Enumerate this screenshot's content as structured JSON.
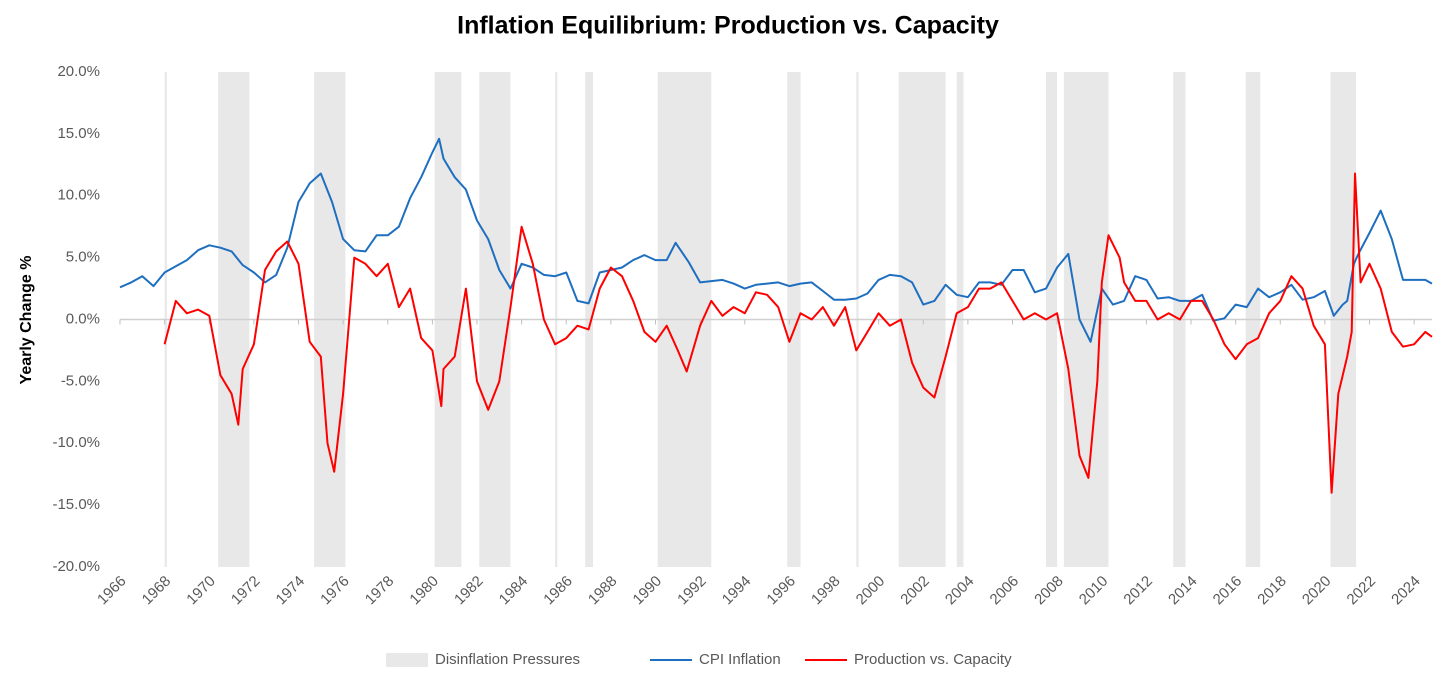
{
  "chart_data": {
    "type": "line",
    "title": "Inflation Equilibrium: Production vs. Capacity",
    "y_label": "Yearly Change %",
    "xlim": [
      1966,
      2024.8
    ],
    "xticks": [
      1966,
      1968,
      1970,
      1972,
      1974,
      1976,
      1978,
      1980,
      1982,
      1984,
      1986,
      1988,
      1990,
      1992,
      1994,
      1996,
      1998,
      2000,
      2002,
      2004,
      2006,
      2008,
      2010,
      2012,
      2014,
      2016,
      2018,
      2020,
      2022,
      2024
    ],
    "ylim": [
      -20,
      20
    ],
    "yticks": [
      {
        "value": -20,
        "label": "-20.0%"
      },
      {
        "value": -15,
        "label": "-15.0%"
      },
      {
        "value": -10,
        "label": "-10.0%"
      },
      {
        "value": -5,
        "label": "-5.0%"
      },
      {
        "value": 0,
        "label": "0.0%"
      },
      {
        "value": 5,
        "label": "5.0%"
      },
      {
        "value": 10,
        "label": "10.0%"
      },
      {
        "value": 15,
        "label": "15.0%"
      },
      {
        "value": 20,
        "label": "20.0%"
      }
    ],
    "legend": "bottom",
    "bands": {
      "name": "Disinflation Pressures",
      "color": "#e8e8e8",
      "ranges": [
        [
          1968.0,
          1968.1
        ],
        [
          1970.4,
          1971.8
        ],
        [
          1974.7,
          1976.1
        ],
        [
          1980.1,
          1981.3
        ],
        [
          1982.1,
          1983.5
        ],
        [
          1985.5,
          1985.6
        ],
        [
          1986.85,
          1987.2
        ],
        [
          1990.1,
          1992.5
        ],
        [
          1995.9,
          1996.5
        ],
        [
          1999.0,
          1999.1
        ],
        [
          2000.9,
          2003.0
        ],
        [
          2003.5,
          2003.8
        ],
        [
          2007.5,
          2008.0
        ],
        [
          2008.3,
          2010.3
        ],
        [
          2013.2,
          2013.75
        ],
        [
          2016.45,
          2017.1
        ],
        [
          2020.25,
          2021.4
        ]
      ]
    },
    "series": [
      {
        "name": "CPI Inflation",
        "color": "#1f6fc0",
        "x": [
          1966.0,
          1966.5,
          1967.0,
          1967.5,
          1968.0,
          1968.5,
          1969.0,
          1969.5,
          1970.0,
          1970.5,
          1971.0,
          1971.5,
          1972.0,
          1972.5,
          1973.0,
          1973.5,
          1974.0,
          1974.5,
          1975.0,
          1975.5,
          1976.0,
          1976.5,
          1977.0,
          1977.5,
          1978.0,
          1978.5,
          1979.0,
          1979.5,
          1980.0,
          1980.3,
          1980.5,
          1981.0,
          1981.5,
          1982.0,
          1982.5,
          1983.0,
          1983.5,
          1984.0,
          1984.5,
          1985.0,
          1985.5,
          1986.0,
          1986.5,
          1987.0,
          1987.5,
          1988.0,
          1988.5,
          1989.0,
          1989.5,
          1990.0,
          1990.5,
          1990.9,
          1991.5,
          1992.0,
          1992.5,
          1993.0,
          1993.5,
          1994.0,
          1994.5,
          1995.0,
          1995.5,
          1996.0,
          1996.5,
          1997.0,
          1997.5,
          1998.0,
          1998.5,
          1999.0,
          1999.5,
          2000.0,
          2000.5,
          2001.0,
          2001.5,
          2002.0,
          2002.5,
          2003.0,
          2003.5,
          2004.0,
          2004.5,
          2005.0,
          2005.5,
          2006.0,
          2006.5,
          2007.0,
          2007.5,
          2008.0,
          2008.5,
          2009.0,
          2009.5,
          2010.0,
          2010.5,
          2011.0,
          2011.5,
          2012.0,
          2012.5,
          2013.0,
          2013.5,
          2014.0,
          2014.5,
          2015.0,
          2015.5,
          2016.0,
          2016.5,
          2017.0,
          2017.5,
          2018.0,
          2018.5,
          2019.0,
          2019.5,
          2020.0,
          2020.4,
          2020.8,
          2021.0,
          2021.3,
          2021.5,
          2022.0,
          2022.5,
          2023.0,
          2023.5,
          2024.0,
          2024.5,
          2024.8
        ],
        "values": [
          2.6,
          3.0,
          3.5,
          2.7,
          3.8,
          4.3,
          4.8,
          5.6,
          6.0,
          5.8,
          5.5,
          4.4,
          3.8,
          3.0,
          3.6,
          5.8,
          9.5,
          11.0,
          11.8,
          9.5,
          6.5,
          5.6,
          5.5,
          6.8,
          6.8,
          7.5,
          9.8,
          11.5,
          13.5,
          14.6,
          13.0,
          11.5,
          10.5,
          8.0,
          6.5,
          4.0,
          2.5,
          4.5,
          4.2,
          3.6,
          3.5,
          3.8,
          1.5,
          1.3,
          3.8,
          4.0,
          4.2,
          4.8,
          5.2,
          4.8,
          4.8,
          6.2,
          4.6,
          3.0,
          3.1,
          3.2,
          2.9,
          2.5,
          2.8,
          2.9,
          3.0,
          2.7,
          2.9,
          3.0,
          2.3,
          1.6,
          1.6,
          1.7,
          2.1,
          3.2,
          3.6,
          3.5,
          3.0,
          1.2,
          1.5,
          2.8,
          2.0,
          1.8,
          3.0,
          3.0,
          2.8,
          4.0,
          4.0,
          2.2,
          2.5,
          4.2,
          5.3,
          0.0,
          -1.8,
          2.5,
          1.2,
          1.5,
          3.5,
          3.2,
          1.7,
          1.8,
          1.5,
          1.5,
          2.0,
          -0.1,
          0.1,
          1.2,
          1.0,
          2.5,
          1.8,
          2.2,
          2.8,
          1.6,
          1.8,
          2.3,
          0.3,
          1.2,
          1.5,
          4.5,
          5.3,
          7.0,
          8.8,
          6.5,
          3.2,
          3.2,
          3.2,
          2.9
        ]
      },
      {
        "name": "Production vs. Capacity",
        "color": "#ff0000",
        "x": [
          1968.0,
          1968.5,
          1969.0,
          1969.5,
          1970.0,
          1970.5,
          1971.0,
          1971.3,
          1971.5,
          1972.0,
          1972.5,
          1973.0,
          1973.5,
          1974.0,
          1974.5,
          1975.0,
          1975.3,
          1975.6,
          1976.0,
          1976.5,
          1977.0,
          1977.5,
          1978.0,
          1978.5,
          1979.0,
          1979.5,
          1980.0,
          1980.4,
          1980.5,
          1981.0,
          1981.5,
          1982.0,
          1982.5,
          1983.0,
          1983.5,
          1984.0,
          1984.5,
          1985.0,
          1985.5,
          1986.0,
          1986.5,
          1987.0,
          1987.5,
          1988.0,
          1988.5,
          1989.0,
          1989.5,
          1990.0,
          1990.5,
          1991.0,
          1991.4,
          1992.0,
          1992.5,
          1993.0,
          1993.5,
          1994.0,
          1994.5,
          1995.0,
          1995.5,
          1996.0,
          1996.5,
          1997.0,
          1997.5,
          1998.0,
          1998.5,
          1999.0,
          1999.5,
          2000.0,
          2000.5,
          2001.0,
          2001.5,
          2002.0,
          2002.5,
          2003.0,
          2003.5,
          2004.0,
          2004.5,
          2005.0,
          2005.5,
          2006.0,
          2006.5,
          2007.0,
          2007.5,
          2008.0,
          2008.5,
          2009.0,
          2009.4,
          2009.8,
          2010.0,
          2010.3,
          2010.8,
          2011.0,
          2011.5,
          2012.0,
          2012.5,
          2013.0,
          2013.5,
          2014.0,
          2014.5,
          2015.0,
          2015.5,
          2016.0,
          2016.5,
          2017.0,
          2017.5,
          2018.0,
          2018.5,
          2019.0,
          2019.5,
          2020.0,
          2020.3,
          2020.6,
          2021.0,
          2021.2,
          2021.35,
          2021.6,
          2022.0,
          2022.5,
          2023.0,
          2023.5,
          2024.0,
          2024.5,
          2024.8
        ],
        "values": [
          -2.0,
          1.5,
          0.5,
          0.8,
          0.3,
          -4.5,
          -6.0,
          -8.5,
          -4.0,
          -2.0,
          4.0,
          5.5,
          6.3,
          4.5,
          -1.8,
          -3.0,
          -10.0,
          -12.3,
          -6.0,
          5.0,
          4.5,
          3.5,
          4.5,
          1.0,
          2.5,
          -1.5,
          -2.5,
          -7.0,
          -4.0,
          -3.0,
          2.5,
          -5.0,
          -7.3,
          -5.0,
          1.0,
          7.5,
          4.5,
          0.0,
          -2.0,
          -1.5,
          -0.5,
          -0.8,
          2.5,
          4.2,
          3.5,
          1.5,
          -1.0,
          -1.8,
          -0.5,
          -2.5,
          -4.2,
          -0.5,
          1.5,
          0.3,
          1.0,
          0.5,
          2.2,
          2.0,
          1.0,
          -1.8,
          0.5,
          0.0,
          1.0,
          -0.5,
          1.0,
          -2.5,
          -1.0,
          0.5,
          -0.5,
          0.0,
          -3.5,
          -5.5,
          -6.3,
          -3.0,
          0.5,
          1.0,
          2.5,
          2.5,
          3.0,
          1.5,
          0.0,
          0.5,
          0.0,
          0.5,
          -4.0,
          -11.0,
          -12.8,
          -5.0,
          3.0,
          6.8,
          5.0,
          3.0,
          1.5,
          1.5,
          0.0,
          0.5,
          0.0,
          1.5,
          1.5,
          0.0,
          -2.0,
          -3.2,
          -2.0,
          -1.5,
          0.5,
          1.5,
          3.5,
          2.5,
          -0.5,
          -2.0,
          -14.0,
          -6.0,
          -3.0,
          -1.0,
          11.8,
          3.0,
          4.5,
          2.5,
          -1.0,
          -2.2,
          -2.0,
          -1.0,
          -1.4
        ]
      }
    ]
  }
}
